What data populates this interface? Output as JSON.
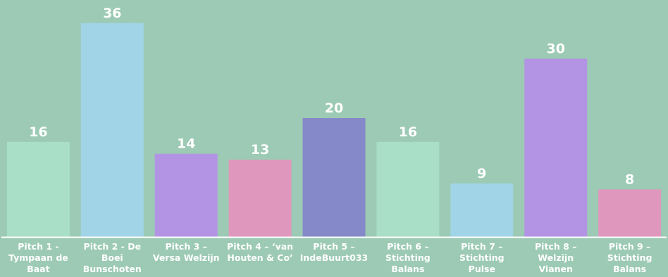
{
  "chart_data": {
    "type": "bar",
    "title": "",
    "xlabel": "",
    "ylabel": "",
    "ylim": [
      0,
      38
    ],
    "grid": false,
    "legend": "none",
    "categories": [
      [
        "Pitch 1 -",
        "Tympaan de",
        "Baat"
      ],
      [
        "Pitch 2 - De",
        "Boei",
        "Bunschoten"
      ],
      [
        "Pitch 3 –",
        "Versa Welzijn"
      ],
      [
        "Pitch 4 – ‘van",
        "Houten & Co’"
      ],
      [
        "Pitch 5 –",
        "IndeBuurt033"
      ],
      [
        "Pitch 6 –",
        "Stichting",
        "Balans"
      ],
      [
        "Pitch 7 –",
        "Stichting",
        "Pulse"
      ],
      [
        "Pitch 8 –",
        "Welzijn",
        "Vianen"
      ],
      [
        "Pitch 9 –",
        "Stichting",
        "Balans"
      ]
    ],
    "values": [
      16,
      36,
      14,
      13,
      20,
      16,
      9,
      30,
      8
    ],
    "colors": [
      "#a8dfc6",
      "#a0d4e6",
      "#b394e4",
      "#e097bd",
      "#8689c9",
      "#a8dfc6",
      "#a0d4e6",
      "#b394e4",
      "#e097bd"
    ],
    "background": "#9ccab4",
    "baseline_color": "#ffffff"
  }
}
